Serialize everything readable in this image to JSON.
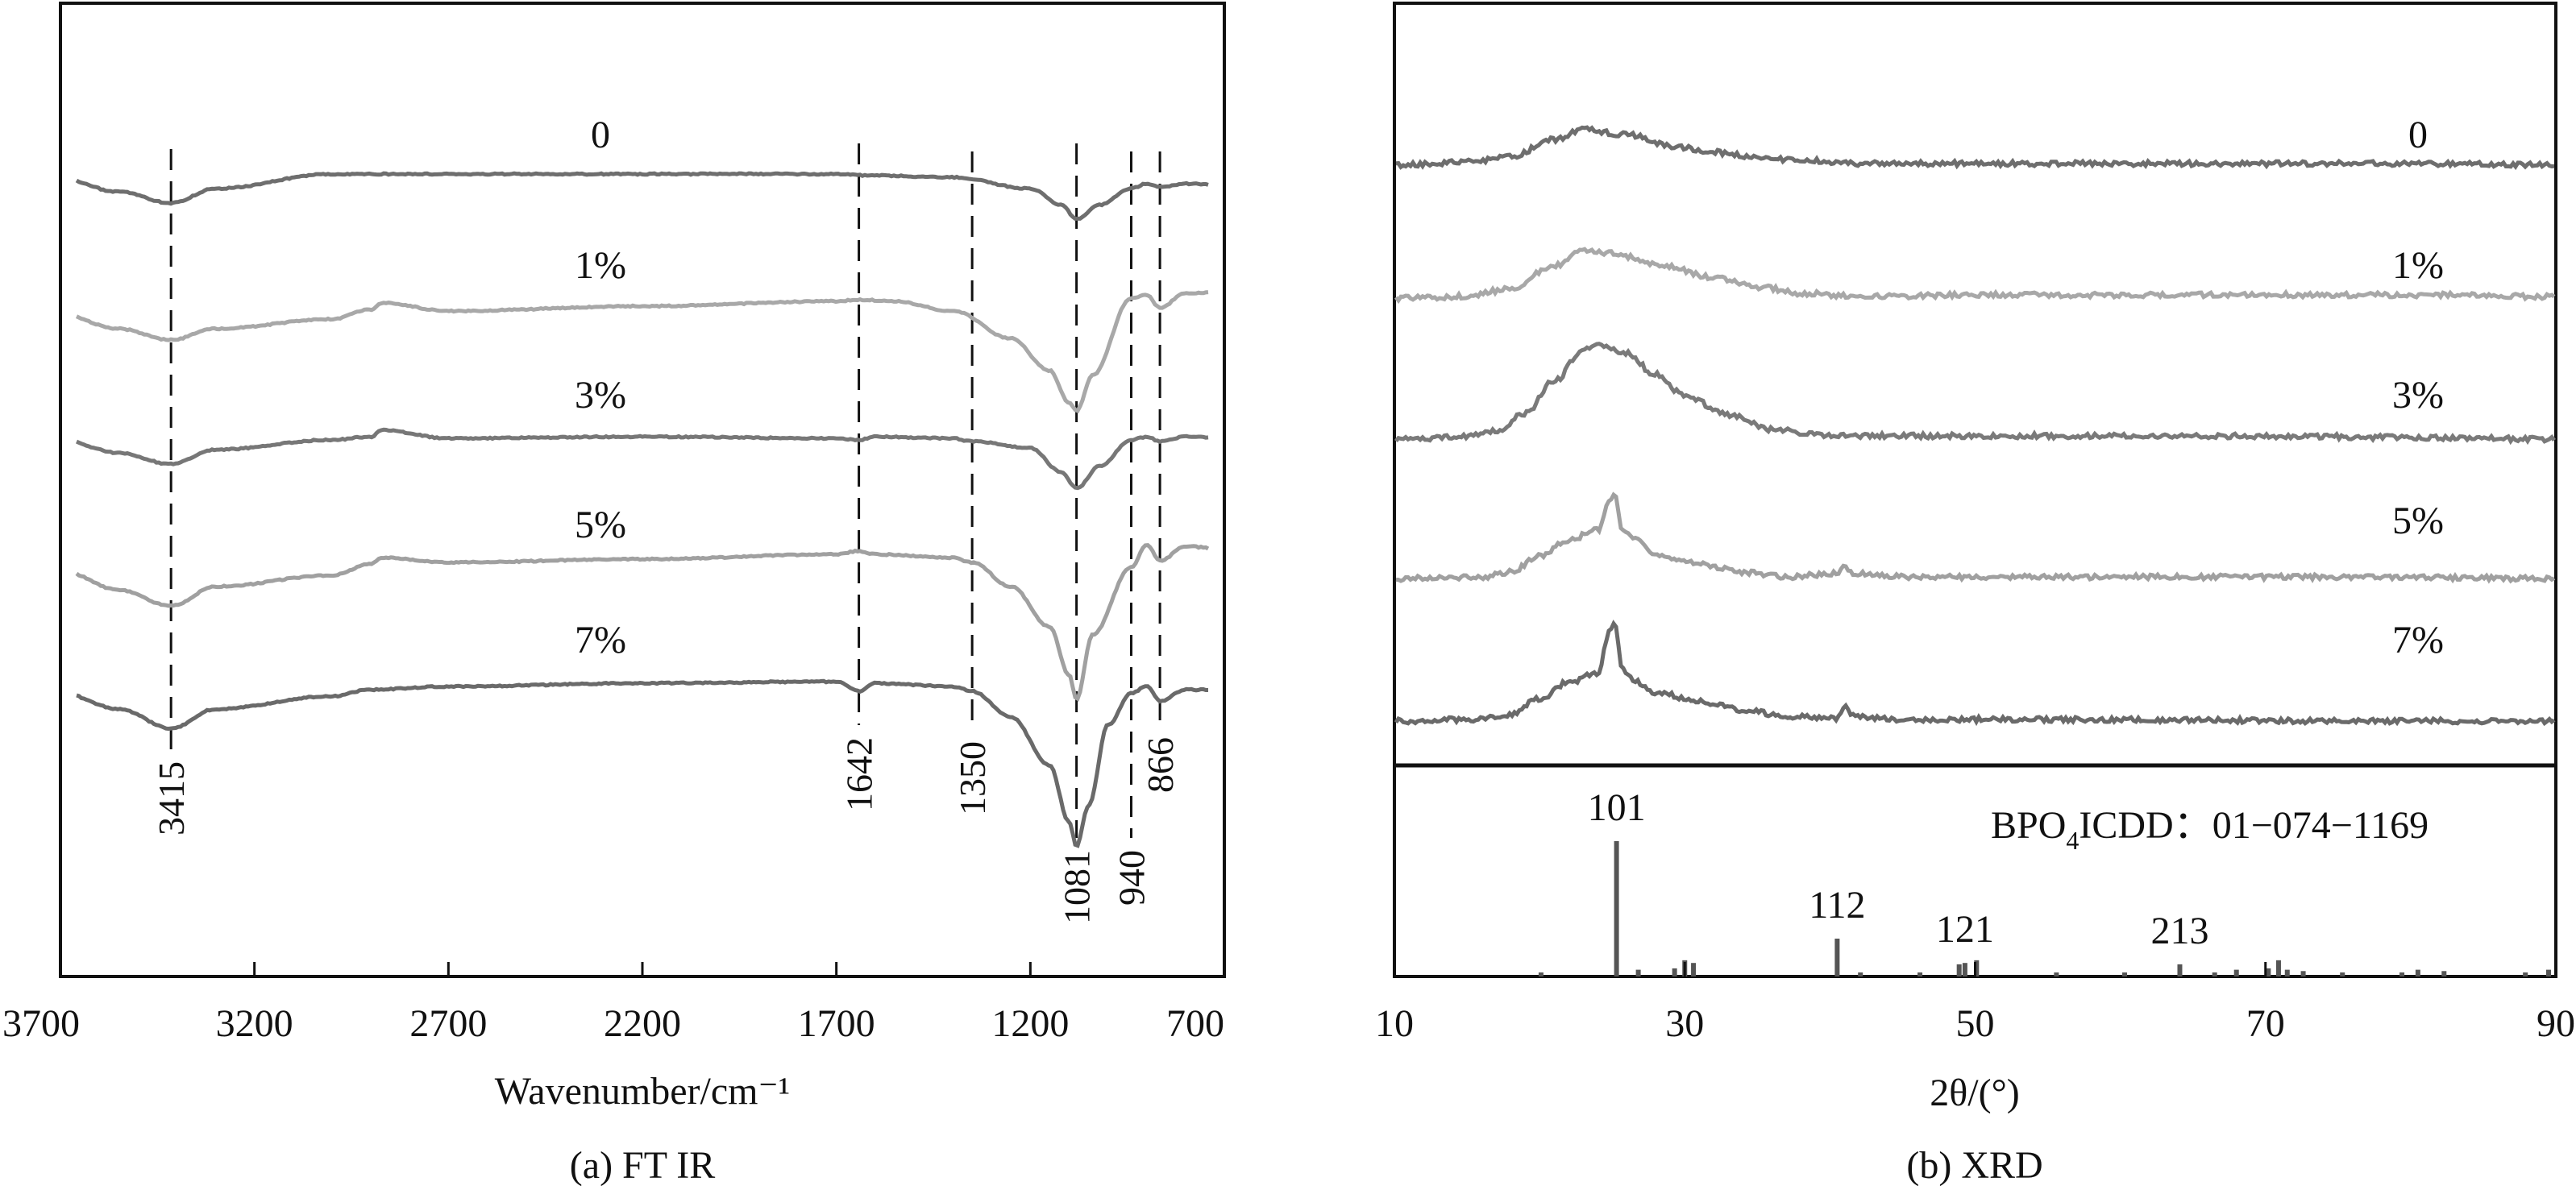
{
  "chart_data": [
    {
      "type": "line",
      "caption": "(a) FT IR",
      "xlabel": "Wavenumber/cm⁻¹",
      "ylabel": "",
      "xlim": [
        3700,
        700
      ],
      "x_reversed": true,
      "x_ticks": [
        "3700",
        "3200",
        "2700",
        "2200",
        "1700",
        "1200",
        "700"
      ],
      "x_tick_values": [
        3700,
        3200,
        2700,
        2200,
        1700,
        1200,
        700
      ],
      "grid": false,
      "legend": "none; series labelled inline above each trace",
      "series": [
        {
          "name": "0",
          "color": "#6e6e6e",
          "offset": 0,
          "x": [
            3700,
            3550,
            3415,
            3300,
            3000,
            2800,
            2200,
            1700,
            1600,
            1400,
            1200,
            1120,
            1081,
            1020,
            940,
            900,
            866,
            800,
            700
          ],
          "y": [
            0,
            -0.8,
            -1.5,
            -0.6,
            0.3,
            0.3,
            0.3,
            0.3,
            0.2,
            0.1,
            -0.6,
            -1.6,
            -2.5,
            -1.6,
            -0.6,
            -0.3,
            -0.5,
            -0.3,
            -0.4
          ]
        },
        {
          "name": "1%",
          "color": "#a8a8a8",
          "offset": 1,
          "x": [
            3700,
            3550,
            3415,
            3300,
            3000,
            2900,
            2870,
            2700,
            2200,
            1700,
            1642,
            1550,
            1400,
            1250,
            1150,
            1100,
            1081,
            1040,
            940,
            900,
            866,
            800,
            700
          ],
          "y": [
            0,
            -0.9,
            -1.6,
            -0.9,
            -0.3,
            0.3,
            0.7,
            0.2,
            0.5,
            0.8,
            0.9,
            0.8,
            0.2,
            -1.5,
            -3.5,
            -5.5,
            -6.0,
            -3.8,
            1.0,
            1.2,
            0.4,
            1.3,
            1.4
          ]
        },
        {
          "name": "3%",
          "color": "#777777",
          "offset": 2,
          "x": [
            3700,
            3550,
            3415,
            3300,
            3000,
            2900,
            2870,
            2700,
            2200,
            1700,
            1642,
            1600,
            1400,
            1350,
            1200,
            1120,
            1081,
            1020,
            940,
            900,
            866,
            800,
            700
          ],
          "y": [
            0,
            -0.8,
            -1.5,
            -0.6,
            0.0,
            0.2,
            0.6,
            0.1,
            0.2,
            0.1,
            0.0,
            0.2,
            0.1,
            -0.1,
            -0.5,
            -2.0,
            -3.0,
            -1.6,
            0.0,
            0.2,
            -0.1,
            0.2,
            0.1
          ]
        },
        {
          "name": "5%",
          "color": "#a0a0a0",
          "offset": 3,
          "x": [
            3700,
            3550,
            3415,
            3300,
            3000,
            2900,
            2870,
            2700,
            2200,
            1700,
            1642,
            1600,
            1400,
            1350,
            1250,
            1150,
            1100,
            1081,
            1040,
            940,
            900,
            866,
            800,
            700
          ],
          "y": [
            0,
            -1.2,
            -2.2,
            -1.0,
            -0.3,
            0.4,
            0.8,
            0.5,
            0.7,
            1.0,
            1.2,
            1.0,
            0.8,
            0.5,
            -1.0,
            -3.5,
            -6.5,
            -8.0,
            -4.0,
            0.2,
            1.6,
            0.6,
            1.5,
            1.3
          ]
        },
        {
          "name": "7%",
          "color": "#6a6a6a",
          "offset": 4,
          "x": [
            3700,
            3550,
            3415,
            3300,
            3000,
            2900,
            2700,
            2200,
            1700,
            1642,
            1600,
            1400,
            1350,
            1250,
            1150,
            1100,
            1081,
            1050,
            1000,
            940,
            900,
            866,
            800,
            700
          ],
          "y": [
            0,
            -1.0,
            -2.2,
            -1.0,
            -0.2,
            0.2,
            0.4,
            0.6,
            0.7,
            0.1,
            0.6,
            0.4,
            0.1,
            -1.5,
            -4.5,
            -8.0,
            -9.5,
            -7.0,
            -2.0,
            0.0,
            0.4,
            -0.5,
            0.2,
            0.2
          ]
        }
      ],
      "annotations": [
        {
          "label": "3415",
          "x": 3415
        },
        {
          "label": "1642",
          "x": 1642
        },
        {
          "label": "1350",
          "x": 1350
        },
        {
          "label": "1081",
          "x": 1081
        },
        {
          "label": "940",
          "x": 940
        },
        {
          "label": "866",
          "x": 866
        }
      ]
    },
    {
      "type": "line",
      "caption": "(b) XRD",
      "xlabel": "2θ/(°)",
      "ylabel": "",
      "xlim": [
        10,
        90
      ],
      "x_ticks": [
        "10",
        "30",
        "50",
        "70",
        "90"
      ],
      "x_tick_values": [
        10,
        30,
        50,
        70,
        90
      ],
      "grid": false,
      "legend": "none; series labelled inline at right of each trace",
      "series": [
        {
          "name": "0",
          "color": "#6e6e6e",
          "x": [
            10,
            15,
            18,
            21,
            23,
            26,
            29,
            32,
            35,
            38,
            42,
            50,
            60,
            70,
            80,
            90
          ],
          "y": [
            0,
            0.2,
            0.5,
            1.6,
            2.2,
            1.9,
            1.2,
            0.8,
            0.5,
            0.3,
            0.1,
            0.1,
            0.1,
            0.1,
            0.1,
            0.0
          ]
        },
        {
          "name": "1%",
          "color": "#a8a8a8",
          "x": [
            10,
            15,
            18,
            21,
            23,
            25,
            28,
            32,
            35,
            38,
            42,
            50,
            60,
            70,
            80,
            90
          ],
          "y": [
            0,
            0.1,
            0.6,
            2.0,
            2.9,
            2.8,
            2.1,
            1.3,
            0.7,
            0.3,
            0.1,
            0.2,
            0.2,
            0.2,
            0.2,
            0.1
          ]
        },
        {
          "name": "3%",
          "color": "#7a7a7a",
          "x": [
            10,
            14,
            17,
            19,
            21,
            23,
            24,
            26,
            28,
            30,
            33,
            36,
            40,
            50,
            60,
            70,
            80,
            90
          ],
          "y": [
            0,
            0.1,
            0.5,
            1.6,
            3.6,
            5.5,
            5.9,
            5.3,
            4.0,
            2.7,
            1.5,
            0.6,
            0.2,
            0.2,
            0.2,
            0.2,
            0.1,
            0.0
          ]
        },
        {
          "name": "5%",
          "color": "#a0a0a0",
          "x": [
            10,
            16,
            18,
            20,
            22,
            24,
            24.8,
            25.2,
            25.7,
            26.5,
            28,
            31,
            34,
            37,
            40.5,
            41,
            41.5,
            45,
            60,
            75,
            90
          ],
          "y": [
            0,
            0.1,
            0.4,
            1.4,
            2.4,
            3.0,
            4.8,
            5.2,
            3.0,
            2.4,
            1.5,
            0.9,
            0.4,
            0.1,
            0.3,
            0.9,
            0.3,
            0.1,
            0.1,
            0.1,
            0.0
          ]
        },
        {
          "name": "7%",
          "color": "#6a6a6a",
          "x": [
            10,
            15,
            18,
            20,
            22,
            24,
            24.8,
            25.2,
            25.7,
            26.5,
            28,
            31,
            34,
            37,
            40.5,
            41,
            41.5,
            45,
            60,
            75,
            90
          ],
          "y": [
            0,
            0.1,
            0.4,
            1.4,
            2.4,
            3.0,
            5.5,
            6.0,
            3.2,
            2.5,
            1.8,
            1.2,
            0.7,
            0.3,
            0.2,
            0.9,
            0.3,
            0.1,
            0.1,
            0.0,
            0.0
          ]
        }
      ],
      "reference": {
        "label_main": "BPO",
        "label_sub": "4",
        "label_rest": "ICDD：01−074−1169",
        "sticks": [
          {
            "x": 20.1,
            "h": 0.03
          },
          {
            "x": 25.3,
            "h": 1.0
          },
          {
            "x": 26.8,
            "h": 0.05
          },
          {
            "x": 29.3,
            "h": 0.06
          },
          {
            "x": 30.0,
            "h": 0.12
          },
          {
            "x": 30.6,
            "h": 0.1
          },
          {
            "x": 40.5,
            "h": 0.28
          },
          {
            "x": 42.1,
            "h": 0.03
          },
          {
            "x": 46.2,
            "h": 0.03
          },
          {
            "x": 48.9,
            "h": 0.09
          },
          {
            "x": 49.3,
            "h": 0.1
          },
          {
            "x": 50.1,
            "h": 0.12
          },
          {
            "x": 55.6,
            "h": 0.03
          },
          {
            "x": 60.3,
            "h": 0.03
          },
          {
            "x": 64.1,
            "h": 0.09
          },
          {
            "x": 66.5,
            "h": 0.03
          },
          {
            "x": 68.0,
            "h": 0.05
          },
          {
            "x": 70.2,
            "h": 0.06
          },
          {
            "x": 70.9,
            "h": 0.12
          },
          {
            "x": 71.5,
            "h": 0.05
          },
          {
            "x": 72.6,
            "h": 0.04
          },
          {
            "x": 75.3,
            "h": 0.03
          },
          {
            "x": 79.4,
            "h": 0.03
          },
          {
            "x": 80.5,
            "h": 0.05
          },
          {
            "x": 82.3,
            "h": 0.04
          },
          {
            "x": 87.9,
            "h": 0.03
          },
          {
            "x": 89.5,
            "h": 0.05
          }
        ],
        "peak_labels": [
          {
            "label": "101",
            "x": 25.3,
            "h": 1.0
          },
          {
            "label": "112",
            "x": 40.5,
            "h": 0.28
          },
          {
            "label": "121",
            "x": 49.3,
            "h": 0.1
          },
          {
            "label": "213",
            "x": 64.1,
            "h": 0.09
          }
        ]
      }
    }
  ]
}
